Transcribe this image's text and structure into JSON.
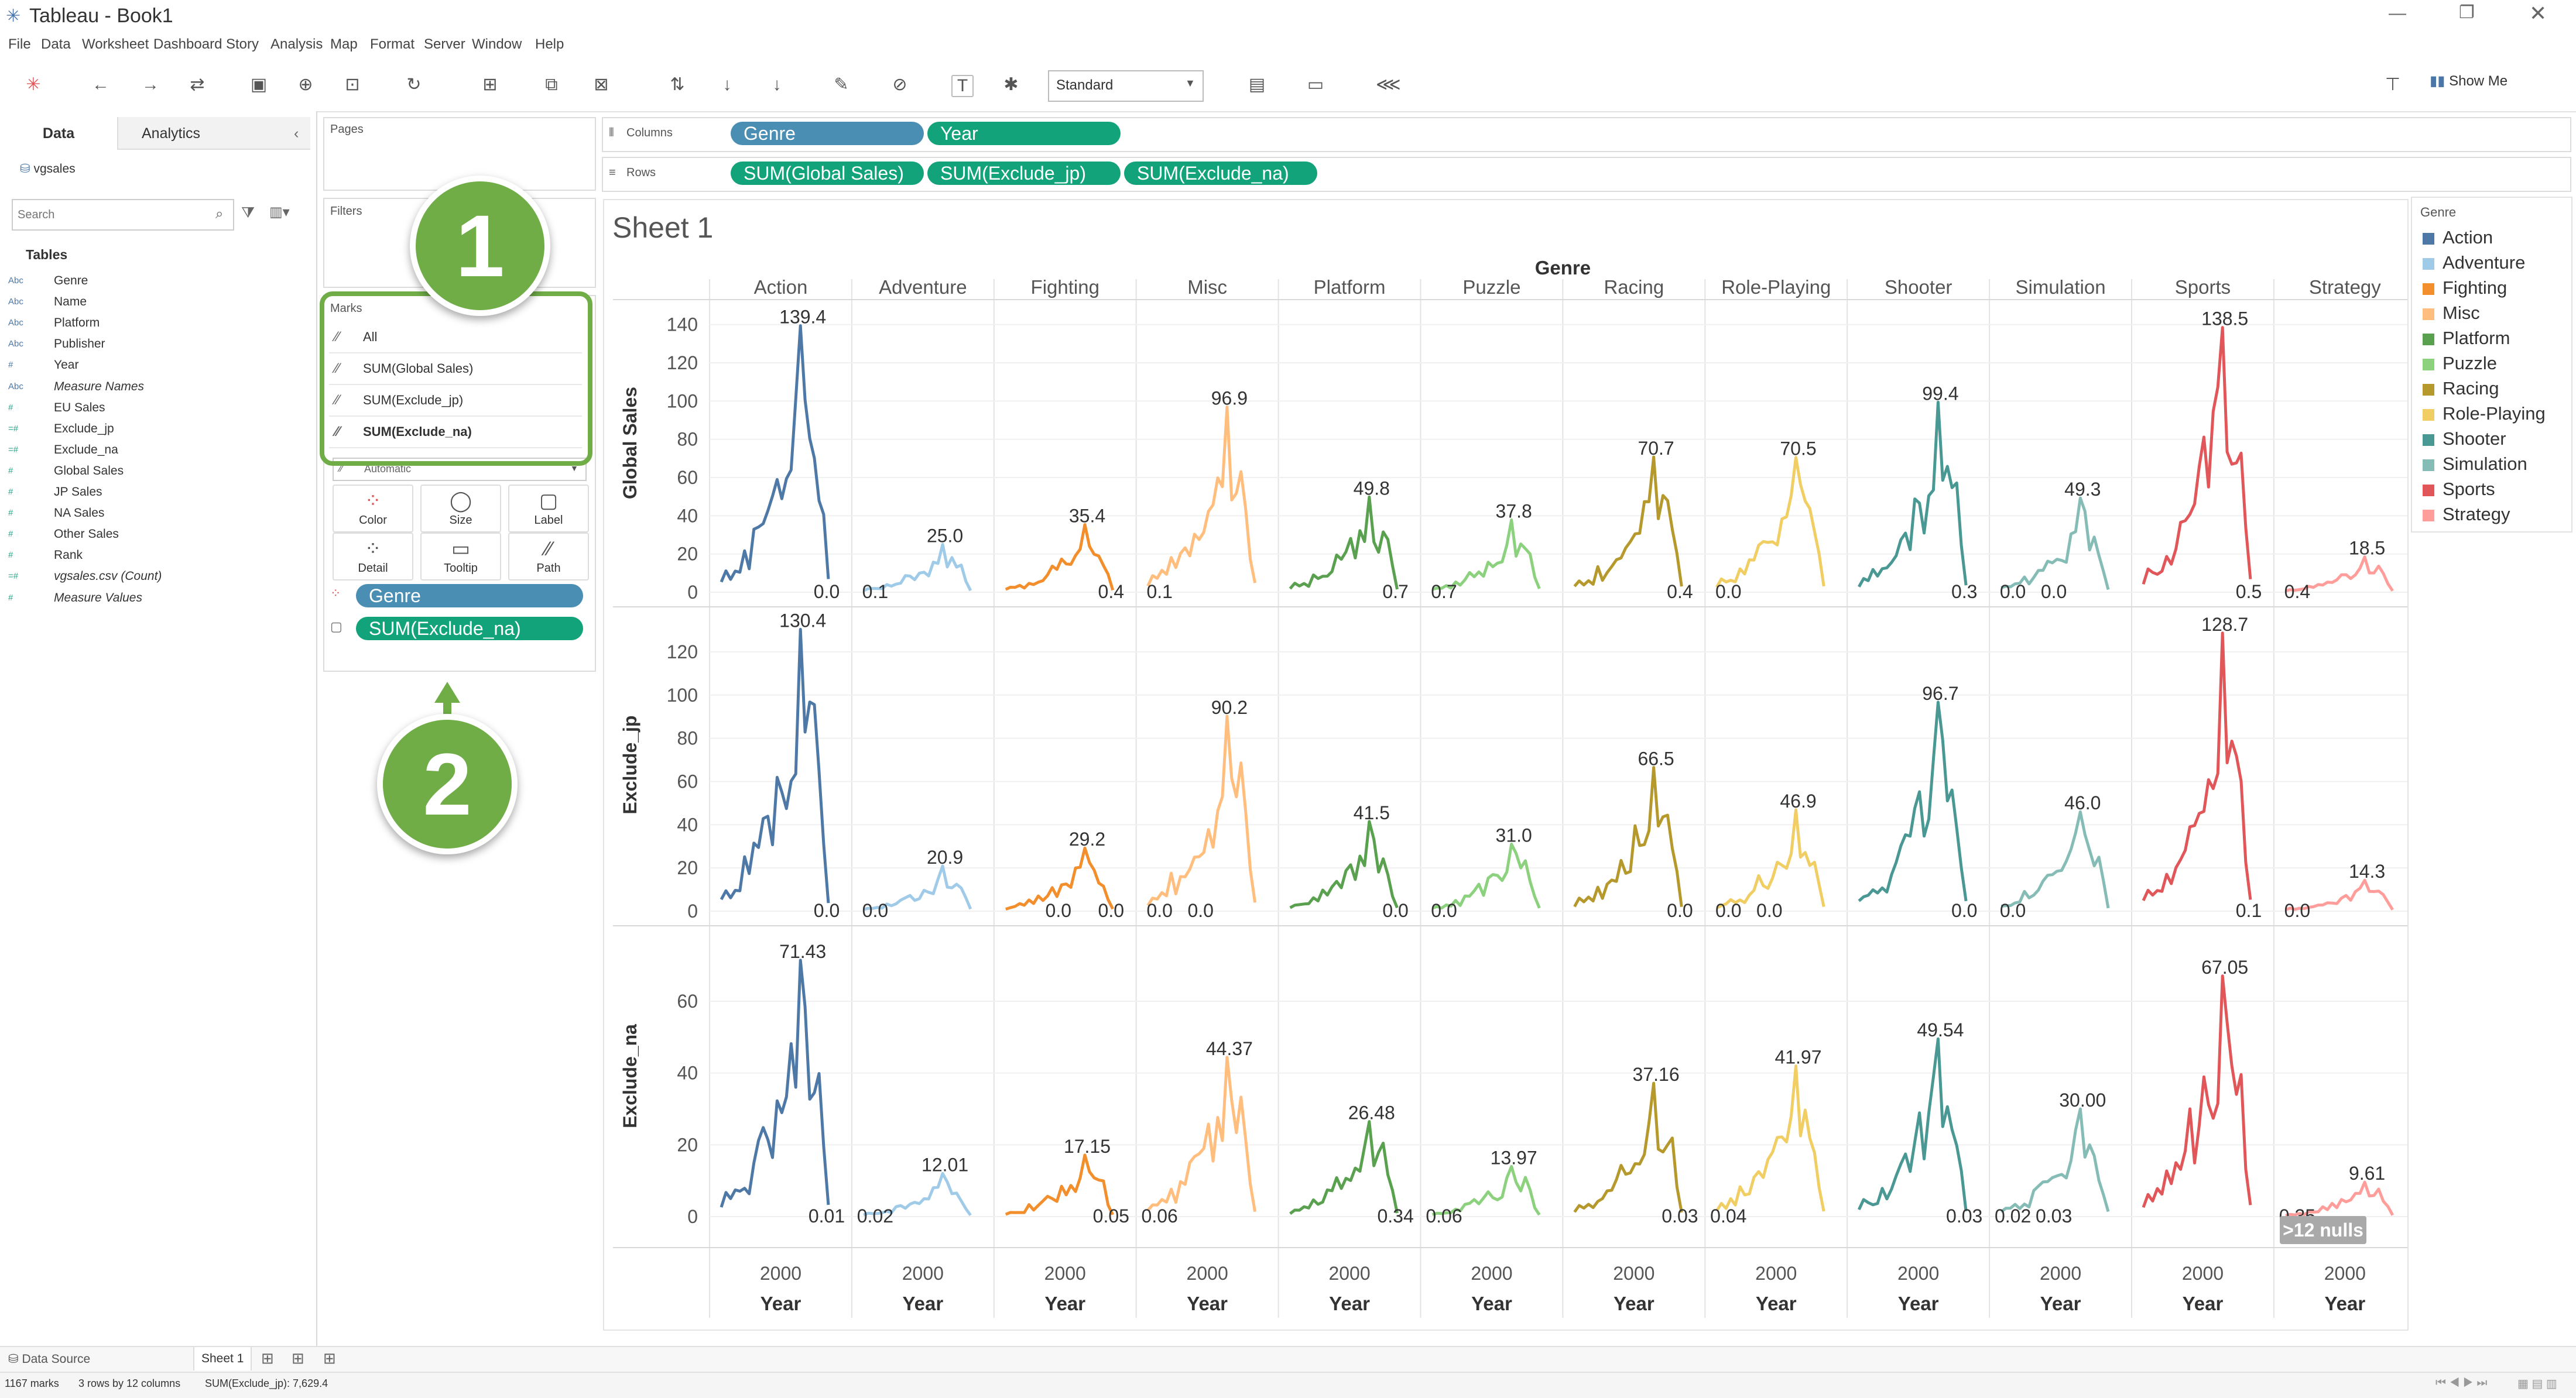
{
  "app": {
    "title": "Tableau - Book1"
  },
  "menu": [
    "File",
    "Data",
    "Worksheet",
    "Dashboard",
    "Story",
    "Analysis",
    "Map",
    "Format",
    "Server",
    "Window",
    "Help"
  ],
  "toolbar": {
    "mark_size": "Standard",
    "show_me": "Show Me"
  },
  "left_pane": {
    "tabs": [
      "Data",
      "Analytics"
    ],
    "datasource": "vgsales",
    "search_placeholder": "Search",
    "tables_heading": "Tables",
    "fields": [
      {
        "type": "Abc",
        "name": "Genre",
        "kind": "dim"
      },
      {
        "type": "Abc",
        "name": "Name",
        "kind": "dim"
      },
      {
        "type": "Abc",
        "name": "Platform",
        "kind": "dim"
      },
      {
        "type": "Abc",
        "name": "Publisher",
        "kind": "dim"
      },
      {
        "type": "#",
        "name": "Year",
        "kind": "dim"
      },
      {
        "type": "Abc",
        "name": "Measure Names",
        "kind": "dim",
        "italic": true
      },
      {
        "type": "#",
        "name": "EU Sales",
        "kind": "measure"
      },
      {
        "type": "=#",
        "name": "Exclude_jp",
        "kind": "measure"
      },
      {
        "type": "=#",
        "name": "Exclude_na",
        "kind": "measure"
      },
      {
        "type": "#",
        "name": "Global Sales",
        "kind": "measure"
      },
      {
        "type": "#",
        "name": "JP Sales",
        "kind": "measure"
      },
      {
        "type": "#",
        "name": "NA Sales",
        "kind": "measure"
      },
      {
        "type": "#",
        "name": "Other Sales",
        "kind": "measure"
      },
      {
        "type": "#",
        "name": "Rank",
        "kind": "measure"
      },
      {
        "type": "=#",
        "name": "vgsales.csv (Count)",
        "kind": "measure",
        "italic": true
      },
      {
        "type": "#",
        "name": "Measure Values",
        "kind": "measure",
        "italic": true
      }
    ]
  },
  "cards": {
    "pages": "Pages",
    "filters": "Filters",
    "marks": "Marks",
    "marks_rows": [
      "All",
      "SUM(Global Sales)",
      "SUM(Exclude_jp)",
      "SUM(Exclude_na)"
    ],
    "mark_type": "Automatic",
    "mark_buttons": [
      "Color",
      "Size",
      "Label",
      "Detail",
      "Tooltip",
      "Path"
    ],
    "mark_pills": [
      "Genre",
      "SUM(Exclude_na)"
    ]
  },
  "shelves": {
    "columns_label": "Columns",
    "rows_label": "Rows",
    "columns": [
      "Genre",
      "Year"
    ],
    "rows": [
      "SUM(Global Sales)",
      "SUM(Exclude_jp)",
      "SUM(Exclude_na)"
    ]
  },
  "sheet": {
    "title": "Sheet 1",
    "header": "Genre",
    "x_tick": "2000",
    "x_title": "Year",
    "nulls_badge": ">12 nulls"
  },
  "legend": {
    "title": "Genre"
  },
  "callouts": [
    "1",
    "2"
  ],
  "colors": {
    "Action": "#4e79a7",
    "Adventure": "#a0cbe8",
    "Fighting": "#f28e2b",
    "Misc": "#ffbe7d",
    "Platform": "#59a14f",
    "Puzzle": "#8cd17d",
    "Racing": "#b6992d",
    "Role-Playing": "#f1ce63",
    "Shooter": "#499894",
    "Simulation": "#86bcb6",
    "Sports": "#e15759",
    "Strategy": "#ff9d9a"
  },
  "chart_data": {
    "type": "line",
    "categories": [
      "Action",
      "Adventure",
      "Fighting",
      "Misc",
      "Platform",
      "Puzzle",
      "Racing",
      "Role-Playing",
      "Shooter",
      "Simulation",
      "Sports",
      "Strategy"
    ],
    "rows": [
      {
        "measure": "Global Sales",
        "ylim": [
          0,
          150
        ],
        "ticks": [
          0,
          20,
          40,
          60,
          80,
          100,
          120,
          140
        ],
        "peak": [
          139.4,
          25.0,
          35.4,
          96.9,
          49.8,
          37.8,
          70.7,
          70.5,
          99.4,
          49.3,
          138.5,
          18.5
        ],
        "peak_labels": [
          "139.4",
          "25.0",
          "35.4",
          "96.9",
          "49.8",
          "37.8",
          "70.7",
          "70.5",
          "99.4",
          "49.3",
          "138.5",
          "18.5"
        ],
        "end_labels": [
          [
            "0.0"
          ],
          [
            "0.1"
          ],
          [
            "0.4"
          ],
          [
            "0.1"
          ],
          [
            "0.7"
          ],
          [
            "0.7"
          ],
          [
            "0.4"
          ],
          [
            "0.0"
          ],
          [
            "0.3"
          ],
          [
            "0.0",
            "0.0"
          ],
          [
            "0.5"
          ],
          [
            "0.4"
          ]
        ]
      },
      {
        "measure": "Exclude_jp",
        "ylim": [
          0,
          130
        ],
        "ticks": [
          0,
          20,
          40,
          60,
          80,
          100,
          120
        ],
        "peak": [
          130.4,
          20.9,
          29.2,
          90.2,
          41.5,
          31.0,
          66.5,
          46.9,
          96.7,
          46.0,
          128.7,
          14.3
        ],
        "peak_labels": [
          "130.4",
          "20.9",
          "29.2",
          "90.2",
          "41.5",
          "31.0",
          "66.5",
          "46.9",
          "96.7",
          "46.0",
          "128.7",
          "14.3"
        ],
        "end_labels": [
          [
            "0.0"
          ],
          [
            "0.0"
          ],
          [
            "0.0",
            "0.0"
          ],
          [
            "0.0",
            "0.0"
          ],
          [
            "0.0"
          ],
          [
            "0.0"
          ],
          [
            "0.0"
          ],
          [
            "0.0",
            "0.0"
          ],
          [
            "0.0"
          ],
          [
            "0.0"
          ],
          [
            "0.1"
          ],
          [
            "0.0"
          ]
        ]
      },
      {
        "measure": "Exclude_na",
        "ylim": [
          0,
          75
        ],
        "ticks": [
          0,
          20,
          40,
          60
        ],
        "peak": [
          71.43,
          12.01,
          17.15,
          44.37,
          26.48,
          13.97,
          37.16,
          41.97,
          49.54,
          30.0,
          67.05,
          9.61
        ],
        "peak_labels": [
          "71.43",
          "12.01",
          "17.15",
          "44.37",
          "26.48",
          "13.97",
          "37.16",
          "41.97",
          "49.54",
          "30.00",
          "67.05",
          "9.61"
        ],
        "end_labels": [
          [
            "0.01"
          ],
          [
            "0.02"
          ],
          [
            "0.05"
          ],
          [
            "0.06"
          ],
          [
            "0.34"
          ],
          [
            "0.06"
          ],
          [
            "0.03"
          ],
          [
            "0.04"
          ],
          [
            "0.03"
          ],
          [
            "0.02",
            "0.03"
          ],
          [
            ""
          ],
          [
            "0.35"
          ]
        ]
      }
    ],
    "xlabel": "Year",
    "x_tick_labels": [
      "2000"
    ]
  },
  "status": {
    "marks": "1167 marks",
    "dims": "3 rows by 12 columns",
    "sum": "SUM(Exclude_jp): 7,629.4",
    "tab_source": "Data Source",
    "tab_sheet": "Sheet 1"
  }
}
